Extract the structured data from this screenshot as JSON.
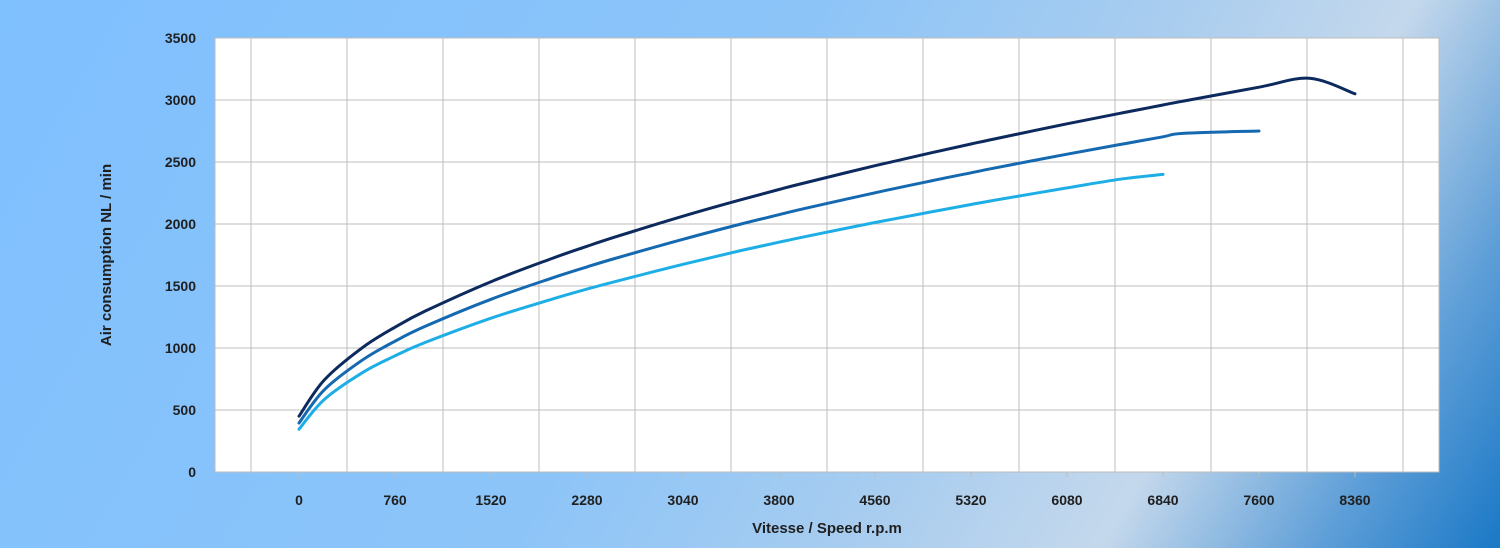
{
  "chart_data": {
    "type": "line",
    "title": "",
    "xlabel": "Vitesse / Speed r.p.m",
    "ylabel": "Air consumption NL / min",
    "xlim": [
      -665,
      9025
    ],
    "ylim": [
      0,
      3500
    ],
    "x_ticks": [
      0,
      760,
      1520,
      2280,
      3040,
      3800,
      4560,
      5320,
      6080,
      6840,
      7600,
      8360
    ],
    "y_ticks": [
      0,
      500,
      1000,
      1500,
      2000,
      2500,
      3000,
      3500
    ],
    "grid": true,
    "legend": "none",
    "series": [
      {
        "color": "#0d2a5e",
        "x": [
          0,
          200,
          500,
          760,
          1000,
          1520,
          2000,
          2280,
          2500,
          3040,
          3500,
          3800,
          4000,
          4560,
          5000,
          5320,
          5500,
          6080,
          6500,
          6840,
          7000,
          7600,
          8000,
          8360
        ],
        "y": [
          450,
          742,
          1002,
          1168,
          1298,
          1535,
          1721,
          1820,
          1894,
          2063,
          2196,
          2278,
          2331,
          2470,
          2573,
          2645,
          2685,
          2808,
          2893,
          2960,
          2991,
          3103,
          3175,
          3050
        ]
      },
      {
        "color": "#1469b0",
        "x": [
          0,
          200,
          500,
          760,
          1000,
          1520,
          2000,
          2280,
          2500,
          3040,
          3500,
          3800,
          4000,
          4560,
          5000,
          5320,
          5500,
          6080,
          6500,
          6840,
          7000,
          7600
        ],
        "y": [
          395,
          663,
          902,
          1055,
          1175,
          1393,
          1563,
          1654,
          1722,
          1877,
          2000,
          2075,
          2124,
          2252,
          2347,
          2413,
          2450,
          2563,
          2641,
          2703,
          2731,
          2750
        ]
      },
      {
        "color": "#1eaee6",
        "x": [
          0,
          200,
          500,
          760,
          1000,
          1520,
          2000,
          2280,
          2500,
          3040,
          3500,
          3800,
          4000,
          4560,
          5000,
          5320,
          5500,
          6080,
          6500,
          6840
        ],
        "y": [
          345,
          585,
          800,
          937,
          1045,
          1240,
          1393,
          1475,
          1535,
          1675,
          1786,
          1853,
          1897,
          2012,
          2097,
          2157,
          2190,
          2291,
          2361,
          2400
        ]
      }
    ]
  }
}
